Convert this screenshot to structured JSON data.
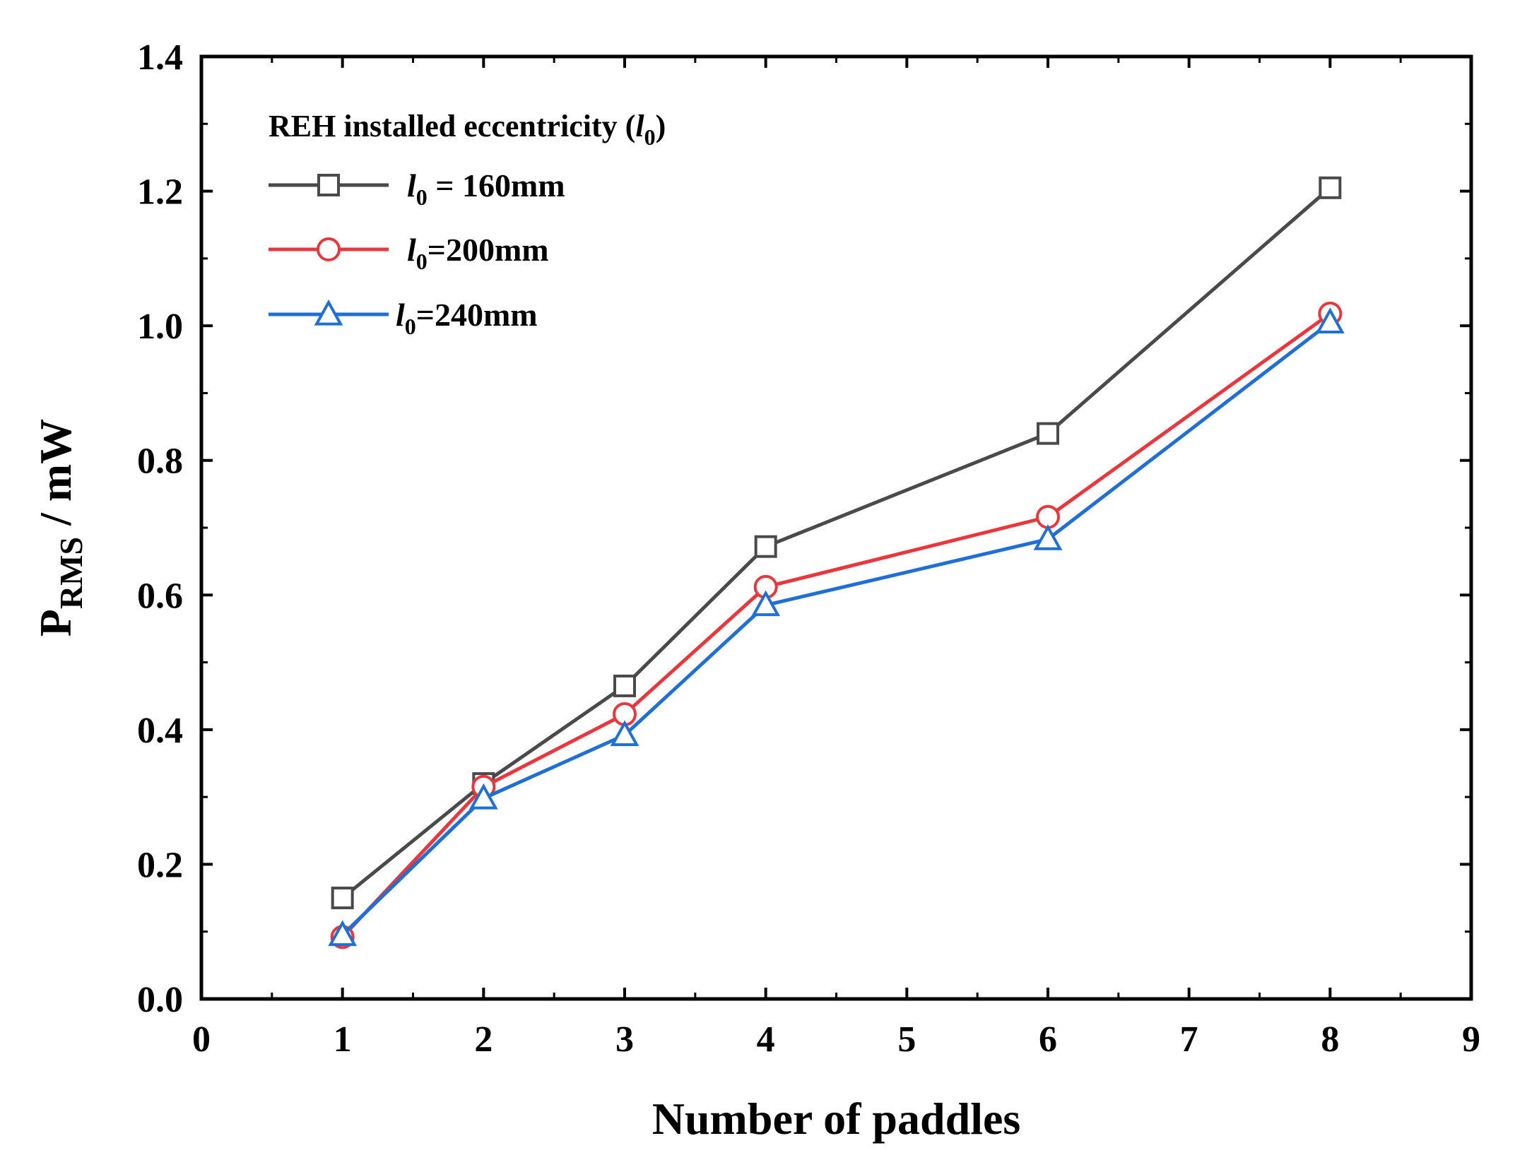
{
  "chart_data": {
    "type": "line",
    "xlabel": "Number of paddles",
    "ylabel": {
      "base": "P",
      "subscript": "RMS",
      "unit": " / mW"
    },
    "xlim": [
      0,
      9
    ],
    "ylim": [
      0,
      1.4
    ],
    "xticks": [
      "0",
      "1",
      "2",
      "3",
      "4",
      "5",
      "6",
      "7",
      "8",
      "9"
    ],
    "yticks": [
      "0.0",
      "0.2",
      "0.4",
      "0.6",
      "0.8",
      "1.0",
      "1.2",
      "1.4"
    ],
    "x": [
      1,
      2,
      3,
      4,
      6,
      8
    ],
    "legend": {
      "title": {
        "text": "REH installed eccentricity (",
        "var": "l",
        "sub": "0",
        "close": ")"
      },
      "position": "top-left"
    },
    "series": [
      {
        "name": "l0 = 160mm",
        "label_var": "l",
        "label_sub": "0",
        "label_rest": " = 160mm",
        "color": "#4a4a4a",
        "marker": "square",
        "values": [
          0.15,
          0.32,
          0.465,
          0.672,
          0.84,
          1.205
        ]
      },
      {
        "name": "l0=200mm",
        "label_var": "l",
        "label_sub": "0",
        "label_rest": "=200mm",
        "color": "#e8383d",
        "marker": "circle",
        "values": [
          0.092,
          0.315,
          0.423,
          0.612,
          0.716,
          1.018
        ]
      },
      {
        "name": "l0=240mm",
        "label_var": "l",
        "label_sub": "0",
        "label_rest": "=240mm",
        "color": "#1f6fd6",
        "marker": "triangle",
        "values": [
          0.095,
          0.298,
          0.392,
          0.585,
          0.683,
          1.005
        ]
      }
    ]
  }
}
